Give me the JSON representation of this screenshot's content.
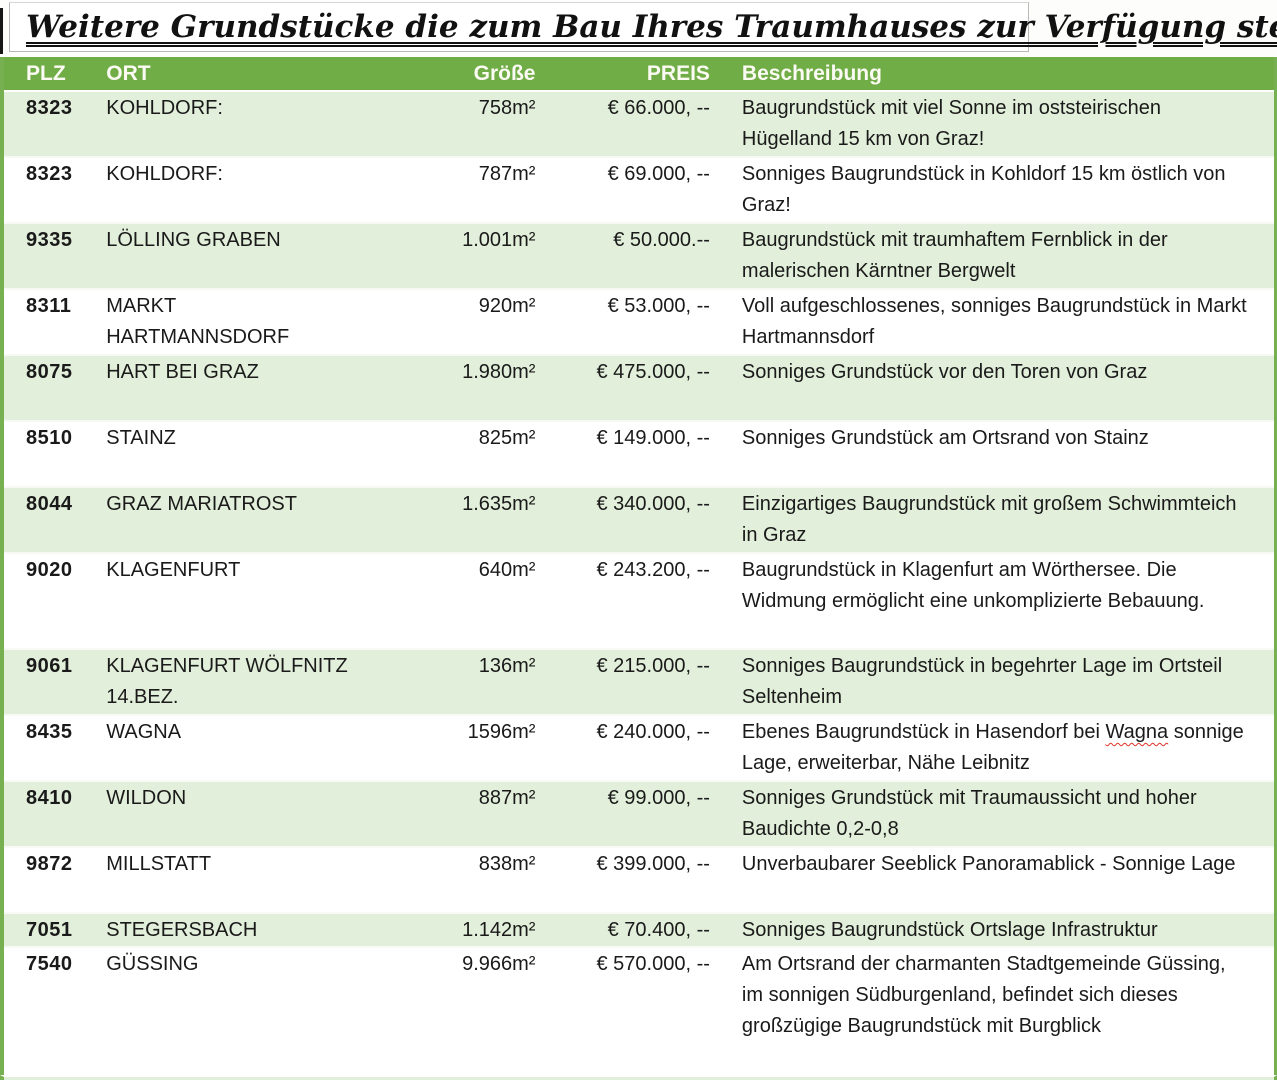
{
  "title": "Weitere Grundstücke die zum Bau Ihres Traumhauses zur Verfügung stehen",
  "colors": {
    "header_bg": "#70ad47",
    "band_bg": "#e2efda",
    "header_text": "#fbfbf3",
    "body_text": "#1a1a1a",
    "squiggle_red": "#e03125"
  },
  "table": {
    "headers": [
      "PLZ",
      "ORT",
      "Größe",
      "PREIS",
      "Beschreibung"
    ],
    "rows": [
      {
        "plz": "8323",
        "ort": "KOHLDORF:",
        "groesse": "758m²",
        "preis": "€ 66.000, --",
        "beschreibung": "Baugrundstück mit viel Sonne im oststeirischen Hügelland 15 km von Graz!"
      },
      {
        "plz": "8323",
        "ort": "KOHLDORF:",
        "groesse": "787m²",
        "preis": "€ 69.000, --",
        "beschreibung": "Sonniges Baugrundstück in Kohldorf 15 km östlich von Graz!"
      },
      {
        "plz": "9335",
        "ort": "LÖLLING GRABEN",
        "groesse": "1.001m²",
        "preis": "€ 50.000.--",
        "beschreibung": "Baugrundstück mit traumhaftem Fernblick in der malerischen Kärntner Bergwelt"
      },
      {
        "plz": "8311",
        "ort": "MARKT HARTMANNSDORF",
        "groesse": "920m²",
        "preis": "€ 53.000, --",
        "beschreibung": "Voll aufgeschlossenes, sonniges Baugrundstück in Markt Hartmannsdorf"
      },
      {
        "plz": "8075",
        "ort": "HART BEI GRAZ",
        "groesse": "1.980m²",
        "preis": "€ 475.000, --",
        "beschreibung": "Sonniges Grundstück vor den Toren von Graz"
      },
      {
        "plz": "8510",
        "ort": "STAINZ",
        "groesse": "825m²",
        "preis": "€ 149.000, --",
        "beschreibung": "Sonniges Grundstück am Ortsrand von Stainz"
      },
      {
        "plz": "8044",
        "ort": "GRAZ MARIATROST",
        "groesse": "1.635m²",
        "preis": "€ 340.000, --",
        "beschreibung": "Einzigartiges Baugrundstück mit großem Schwimmteich in Graz"
      },
      {
        "plz": "9020",
        "ort": "KLAGENFURT",
        "groesse": "640m²",
        "preis": "€ 243.200, --",
        "beschreibung": "Baugrundstück in Klagenfurt am Wörthersee. Die Widmung ermöglicht eine unkomplizierte Bebauung."
      },
      {
        "plz": "9061",
        "ort": "KLAGENFURT WÖLFNITZ 14.BEZ.",
        "groesse": "136m²",
        "preis": "€ 215.000, --",
        "beschreibung": "Sonniges Baugrundstück in begehrter Lage im Ortsteil Seltenheim"
      },
      {
        "plz": "8435",
        "ort": "WAGNA",
        "groesse": "1596m²",
        "preis": "€ 240.000, --",
        "beschreibung": "Ebenes Baugrundstück in Hasendorf bei Wagna sonnige Lage, erweiterbar, Nähe Leibnitz",
        "squiggle_word": "Wagna"
      },
      {
        "plz": "8410",
        "ort": "WILDON",
        "groesse": "887m²",
        "preis": "€ 99.000, --",
        "beschreibung": "Sonniges Grundstück mit Traumaussicht und hoher Baudichte 0,2-0,8"
      },
      {
        "plz": "9872",
        "ort": "MILLSTATT",
        "groesse": "838m²",
        "preis": "€ 399.000, --",
        "beschreibung": "Unverbaubarer Seeblick Panoramablick - Sonnige Lage"
      },
      {
        "plz": "7051",
        "ort": "STEGERSBACH",
        "groesse": "1.142m²",
        "preis": "€ 70.400, --",
        "beschreibung": "Sonniges Baugrundstück Ortslage Infrastruktur"
      },
      {
        "plz": "7540",
        "ort": "GÜSSING",
        "groesse": "9.966m²",
        "preis": "€ 570.000, --",
        "beschreibung": "Am Ortsrand der charmanten Stadtgemeinde Güssing, im sonnigen Südburgenland, befindet sich dieses großzügige Baugrundstück mit Burgblick"
      }
    ]
  }
}
